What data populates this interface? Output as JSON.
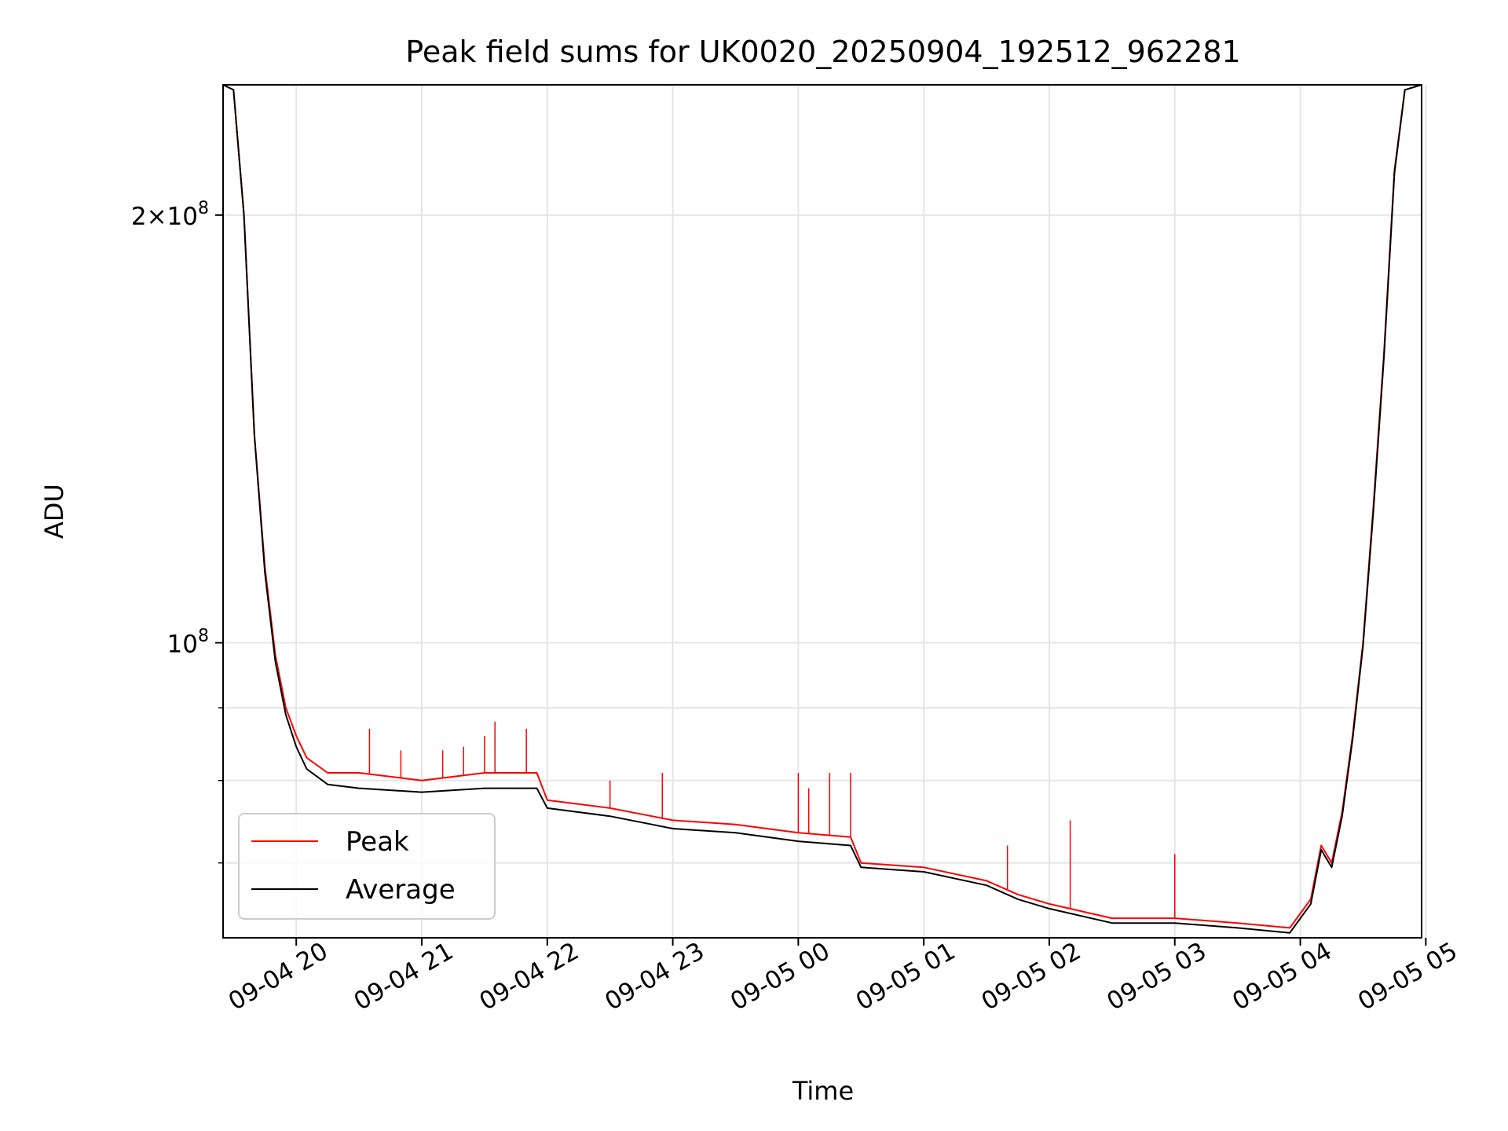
{
  "chart_data": {
    "type": "line",
    "title": "Peak field sums for UK0020_20250904_192512_962281",
    "xlabel": "Time",
    "ylabel": "ADU",
    "x_axis": {
      "type": "time",
      "range": [
        "2025-09-04 19:25",
        "2025-09-05 04:58"
      ],
      "ticks": [
        {
          "value": "2025-09-04 20:00",
          "label": "09-04 20"
        },
        {
          "value": "2025-09-04 21:00",
          "label": "09-04 21"
        },
        {
          "value": "2025-09-04 22:00",
          "label": "09-04 22"
        },
        {
          "value": "2025-09-04 23:00",
          "label": "09-04 23"
        },
        {
          "value": "2025-09-05 00:00",
          "label": "09-05 00"
        },
        {
          "value": "2025-09-05 01:00",
          "label": "09-05 01"
        },
        {
          "value": "2025-09-05 02:00",
          "label": "09-05 02"
        },
        {
          "value": "2025-09-05 03:00",
          "label": "09-05 03"
        },
        {
          "value": "2025-09-05 04:00",
          "label": "09-05 04"
        },
        {
          "value": "2025-09-05 05:00",
          "label": "09-05 05"
        }
      ]
    },
    "y_axis": {
      "scale": "log",
      "range": [
        62000000,
        247000000
      ],
      "ticks": [
        {
          "value": 200000000,
          "mantissa": "2",
          "label_times": "×",
          "base": "10",
          "exp": "8"
        },
        {
          "value": 100000000,
          "mantissa": "",
          "label_times": "",
          "base": "10",
          "exp": "8"
        }
      ],
      "minor_ticks": [
        70000000,
        80000000,
        90000000
      ]
    },
    "grid": true,
    "legend": {
      "placement": "lower-left"
    },
    "series": [
      {
        "name": "Peak",
        "color": "#ff0000",
        "points": [
          [
            "2025-09-04 19:25",
            247000000
          ],
          [
            "2025-09-04 19:30",
            245000000
          ],
          [
            "2025-09-04 19:35",
            200000000
          ],
          [
            "2025-09-04 19:40",
            140000000
          ],
          [
            "2025-09-04 19:45",
            113000000
          ],
          [
            "2025-09-04 19:50",
            98000000
          ],
          [
            "2025-09-04 19:55",
            90000000
          ],
          [
            "2025-09-04 20:00",
            86000000
          ],
          [
            "2025-09-04 20:05",
            83000000
          ],
          [
            "2025-09-04 20:15",
            81000000
          ],
          [
            "2025-09-04 20:30",
            81000000
          ],
          [
            "2025-09-04 21:00",
            80000000
          ],
          [
            "2025-09-04 21:30",
            81000000
          ],
          [
            "2025-09-04 21:55",
            81000000
          ],
          [
            "2025-09-04 22:00",
            77500000
          ],
          [
            "2025-09-04 22:30",
            76500000
          ],
          [
            "2025-09-04 22:50",
            75500000
          ],
          [
            "2025-09-04 23:00",
            75000000
          ],
          [
            "2025-09-04 23:30",
            74500000
          ],
          [
            "2025-09-05 00:00",
            73500000
          ],
          [
            "2025-09-05 00:25",
            73000000
          ],
          [
            "2025-09-05 00:30",
            70000000
          ],
          [
            "2025-09-05 01:00",
            69500000
          ],
          [
            "2025-09-05 01:30",
            68000000
          ],
          [
            "2025-09-05 01:45",
            66500000
          ],
          [
            "2025-09-05 02:00",
            65500000
          ],
          [
            "2025-09-05 02:30",
            64000000
          ],
          [
            "2025-09-05 03:00",
            64000000
          ],
          [
            "2025-09-05 03:30",
            63500000
          ],
          [
            "2025-09-05 03:55",
            63000000
          ],
          [
            "2025-09-05 04:05",
            66000000
          ],
          [
            "2025-09-05 04:10",
            72000000
          ],
          [
            "2025-09-05 04:15",
            70000000
          ],
          [
            "2025-09-05 04:20",
            76000000
          ],
          [
            "2025-09-05 04:25",
            86000000
          ],
          [
            "2025-09-05 04:30",
            100000000
          ],
          [
            "2025-09-05 04:35",
            125000000
          ],
          [
            "2025-09-05 04:40",
            160000000
          ],
          [
            "2025-09-05 04:45",
            215000000
          ],
          [
            "2025-09-05 04:50",
            245000000
          ],
          [
            "2025-09-05 04:58",
            247000000
          ]
        ],
        "spikes": [
          [
            "2025-09-04 20:35",
            87000000
          ],
          [
            "2025-09-04 20:50",
            84000000
          ],
          [
            "2025-09-04 21:10",
            84000000
          ],
          [
            "2025-09-04 21:20",
            84500000
          ],
          [
            "2025-09-04 21:30",
            86000000
          ],
          [
            "2025-09-04 21:35",
            88000000
          ],
          [
            "2025-09-04 21:50",
            87000000
          ],
          [
            "2025-09-04 22:30",
            80000000
          ],
          [
            "2025-09-04 22:55",
            81000000
          ],
          [
            "2025-09-05 00:00",
            81000000
          ],
          [
            "2025-09-05 00:05",
            79000000
          ],
          [
            "2025-09-05 00:15",
            81000000
          ],
          [
            "2025-09-05 00:25",
            81000000
          ],
          [
            "2025-09-05 01:40",
            72000000
          ],
          [
            "2025-09-05 02:10",
            75000000
          ],
          [
            "2025-09-05 03:00",
            71000000
          ]
        ]
      },
      {
        "name": "Average",
        "color": "#000000",
        "points": [
          [
            "2025-09-04 19:25",
            247000000
          ],
          [
            "2025-09-04 19:30",
            245000000
          ],
          [
            "2025-09-04 19:35",
            200000000
          ],
          [
            "2025-09-04 19:40",
            140000000
          ],
          [
            "2025-09-04 19:45",
            112000000
          ],
          [
            "2025-09-04 19:50",
            97000000
          ],
          [
            "2025-09-04 19:55",
            89000000
          ],
          [
            "2025-09-04 20:00",
            84500000
          ],
          [
            "2025-09-04 20:05",
            81500000
          ],
          [
            "2025-09-04 20:15",
            79500000
          ],
          [
            "2025-09-04 20:30",
            79000000
          ],
          [
            "2025-09-04 21:00",
            78500000
          ],
          [
            "2025-09-04 21:30",
            79000000
          ],
          [
            "2025-09-04 21:55",
            79000000
          ],
          [
            "2025-09-04 22:00",
            76500000
          ],
          [
            "2025-09-04 22:30",
            75500000
          ],
          [
            "2025-09-04 22:50",
            74500000
          ],
          [
            "2025-09-04 23:00",
            74000000
          ],
          [
            "2025-09-04 23:30",
            73500000
          ],
          [
            "2025-09-05 00:00",
            72500000
          ],
          [
            "2025-09-05 00:25",
            72000000
          ],
          [
            "2025-09-05 00:30",
            69500000
          ],
          [
            "2025-09-05 01:00",
            69000000
          ],
          [
            "2025-09-05 01:30",
            67500000
          ],
          [
            "2025-09-05 01:45",
            66000000
          ],
          [
            "2025-09-05 02:00",
            65000000
          ],
          [
            "2025-09-05 02:30",
            63500000
          ],
          [
            "2025-09-05 03:00",
            63500000
          ],
          [
            "2025-09-05 03:30",
            63000000
          ],
          [
            "2025-09-05 03:55",
            62500000
          ],
          [
            "2025-09-05 04:05",
            65500000
          ],
          [
            "2025-09-05 04:10",
            71500000
          ],
          [
            "2025-09-05 04:15",
            69500000
          ],
          [
            "2025-09-05 04:20",
            75500000
          ],
          [
            "2025-09-05 04:25",
            85500000
          ],
          [
            "2025-09-05 04:30",
            99500000
          ],
          [
            "2025-09-05 04:35",
            124000000
          ],
          [
            "2025-09-05 04:40",
            159000000
          ],
          [
            "2025-09-05 04:45",
            214000000
          ],
          [
            "2025-09-05 04:50",
            245000000
          ],
          [
            "2025-09-05 04:58",
            247000000
          ]
        ]
      }
    ]
  }
}
